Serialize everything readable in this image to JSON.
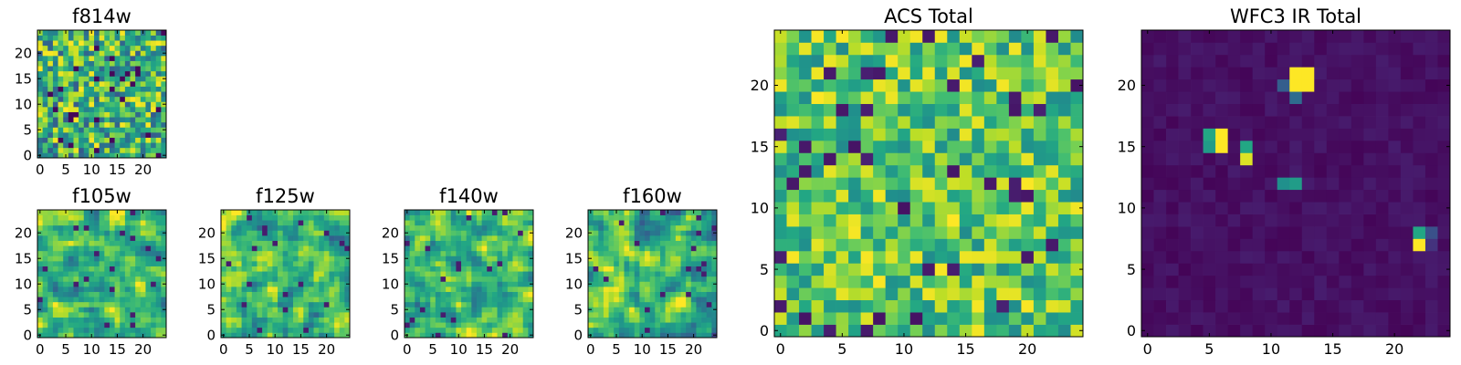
{
  "chart_data": [
    {
      "id": "f814w",
      "type": "heatmap",
      "title": "f814w",
      "grid_size": 25,
      "x_ticks": [
        0,
        5,
        10,
        15,
        20
      ],
      "y_ticks": [
        0,
        5,
        10,
        15,
        20
      ],
      "xlim": [
        -0.5,
        24.5
      ],
      "ylim": [
        -0.5,
        24.5
      ],
      "colormap": "viridis",
      "pattern": "uniform-noise",
      "seed": 11
    },
    {
      "id": "f105w",
      "type": "heatmap",
      "title": "f105w",
      "grid_size": 25,
      "x_ticks": [
        0,
        5,
        10,
        15,
        20
      ],
      "y_ticks": [
        0,
        5,
        10,
        15,
        20
      ],
      "xlim": [
        -0.5,
        24.5
      ],
      "ylim": [
        -0.5,
        24.5
      ],
      "colormap": "viridis",
      "pattern": "smooth-noise",
      "seed": 23
    },
    {
      "id": "f125w",
      "type": "heatmap",
      "title": "f125w",
      "grid_size": 25,
      "x_ticks": [
        0,
        5,
        10,
        15,
        20
      ],
      "y_ticks": [
        0,
        5,
        10,
        15,
        20
      ],
      "xlim": [
        -0.5,
        24.5
      ],
      "ylim": [
        -0.5,
        24.5
      ],
      "colormap": "viridis",
      "pattern": "smooth-noise",
      "seed": 37
    },
    {
      "id": "f140w",
      "type": "heatmap",
      "title": "f140w",
      "grid_size": 25,
      "x_ticks": [
        0,
        5,
        10,
        15,
        20
      ],
      "y_ticks": [
        0,
        5,
        10,
        15,
        20
      ],
      "xlim": [
        -0.5,
        24.5
      ],
      "ylim": [
        -0.5,
        24.5
      ],
      "colormap": "viridis",
      "pattern": "smooth-noise",
      "seed": 41
    },
    {
      "id": "f160w",
      "type": "heatmap",
      "title": "f160w",
      "grid_size": 25,
      "x_ticks": [
        0,
        5,
        10,
        15,
        20
      ],
      "y_ticks": [
        0,
        5,
        10,
        15,
        20
      ],
      "xlim": [
        -0.5,
        24.5
      ],
      "ylim": [
        -0.5,
        24.5
      ],
      "colormap": "viridis",
      "pattern": "smooth-noise",
      "seed": 53
    },
    {
      "id": "acs-total",
      "type": "heatmap",
      "title": "ACS Total",
      "grid_size": 25,
      "x_ticks": [
        0,
        5,
        10,
        15,
        20
      ],
      "y_ticks": [
        0,
        5,
        10,
        15,
        20
      ],
      "xlim": [
        -0.5,
        24.5
      ],
      "ylim": [
        -0.5,
        24.5
      ],
      "colormap": "viridis",
      "pattern": "uniform-noise-bright",
      "seed": 67
    },
    {
      "id": "wfc3-ir-total",
      "type": "heatmap",
      "title": "WFC3 IR Total",
      "grid_size": 25,
      "x_ticks": [
        0,
        5,
        10,
        15,
        20
      ],
      "y_ticks": [
        0,
        5,
        10,
        15,
        20
      ],
      "xlim": [
        -0.5,
        24.5
      ],
      "ylim": [
        -0.5,
        24.5
      ],
      "colormap": "viridis",
      "pattern": "dark-background",
      "seed": 79,
      "bright_pixels": [
        {
          "x": 12,
          "y": 21,
          "value": 1.0
        },
        {
          "x": 13,
          "y": 21,
          "value": 1.0
        },
        {
          "x": 12,
          "y": 20,
          "value": 1.0
        },
        {
          "x": 13,
          "y": 20,
          "value": 1.0
        },
        {
          "x": 12,
          "y": 19,
          "value": 0.35
        },
        {
          "x": 11,
          "y": 20,
          "value": 0.3
        },
        {
          "x": 5,
          "y": 16,
          "value": 0.6
        },
        {
          "x": 6,
          "y": 16,
          "value": 1.0
        },
        {
          "x": 5,
          "y": 15,
          "value": 0.55
        },
        {
          "x": 6,
          "y": 15,
          "value": 1.0
        },
        {
          "x": 8,
          "y": 15,
          "value": 0.6
        },
        {
          "x": 8,
          "y": 14,
          "value": 0.95
        },
        {
          "x": 11,
          "y": 12,
          "value": 0.5
        },
        {
          "x": 12,
          "y": 12,
          "value": 0.55
        },
        {
          "x": 22,
          "y": 8,
          "value": 0.6
        },
        {
          "x": 23,
          "y": 8,
          "value": 0.25
        },
        {
          "x": 22,
          "y": 7,
          "value": 1.0
        },
        {
          "x": 23,
          "y": 7,
          "value": 0.15
        }
      ]
    }
  ]
}
